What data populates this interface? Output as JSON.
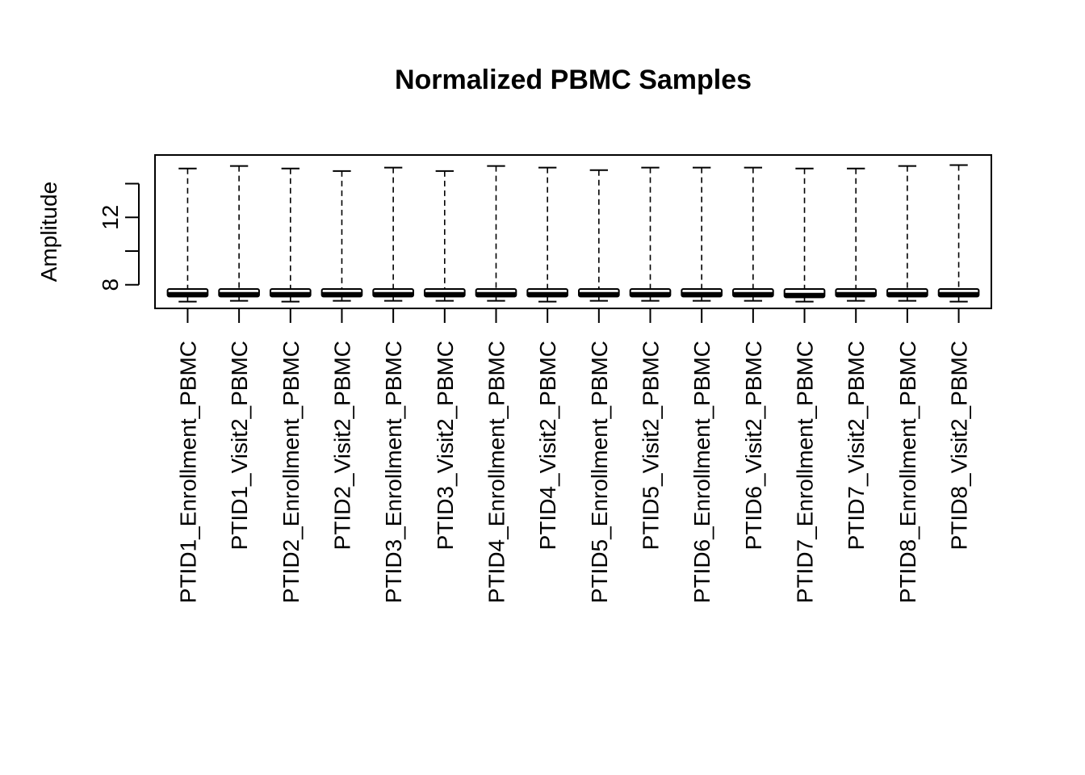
{
  "chart_data": {
    "type": "boxplot",
    "title": "Normalized PBMC Samples",
    "xlabel": "",
    "ylabel": "Amplitude",
    "yticks": [
      8,
      10,
      12,
      14
    ],
    "ytick_labels": [
      "8",
      "",
      "12",
      ""
    ],
    "ylim": [
      6.6,
      15.7
    ],
    "grid": false,
    "categories": [
      "PTID1_Enrollment_PBMC",
      "PTID1_Visit2_PBMC",
      "PTID2_Enrollment_PBMC",
      "PTID2_Visit2_PBMC",
      "PTID3_Enrollment_PBMC",
      "PTID3_Visit2_PBMC",
      "PTID4_Enrollment_PBMC",
      "PTID4_Visit2_PBMC",
      "PTID5_Enrollment_PBMC",
      "PTID5_Visit2_PBMC",
      "PTID6_Enrollment_PBMC",
      "PTID6_Visit2_PBMC",
      "PTID7_Enrollment_PBMC",
      "PTID7_Visit2_PBMC",
      "PTID8_Enrollment_PBMC",
      "PTID8_Visit2_PBMC"
    ],
    "boxes": [
      {
        "whisker_low": 7.0,
        "q1": 7.3,
        "median": 7.45,
        "q3": 7.75,
        "whisker_high": 14.9
      },
      {
        "whisker_low": 7.05,
        "q1": 7.3,
        "median": 7.45,
        "q3": 7.75,
        "whisker_high": 15.05
      },
      {
        "whisker_low": 7.0,
        "q1": 7.3,
        "median": 7.45,
        "q3": 7.75,
        "whisker_high": 14.9
      },
      {
        "whisker_low": 7.05,
        "q1": 7.3,
        "median": 7.45,
        "q3": 7.75,
        "whisker_high": 14.75
      },
      {
        "whisker_low": 7.05,
        "q1": 7.3,
        "median": 7.45,
        "q3": 7.75,
        "whisker_high": 14.95
      },
      {
        "whisker_low": 7.05,
        "q1": 7.3,
        "median": 7.45,
        "q3": 7.75,
        "whisker_high": 14.75
      },
      {
        "whisker_low": 7.05,
        "q1": 7.3,
        "median": 7.45,
        "q3": 7.75,
        "whisker_high": 15.05
      },
      {
        "whisker_low": 7.0,
        "q1": 7.3,
        "median": 7.45,
        "q3": 7.75,
        "whisker_high": 14.95
      },
      {
        "whisker_low": 7.05,
        "q1": 7.3,
        "median": 7.45,
        "q3": 7.75,
        "whisker_high": 14.8
      },
      {
        "whisker_low": 7.05,
        "q1": 7.3,
        "median": 7.45,
        "q3": 7.75,
        "whisker_high": 14.95
      },
      {
        "whisker_low": 7.05,
        "q1": 7.3,
        "median": 7.45,
        "q3": 7.75,
        "whisker_high": 14.95
      },
      {
        "whisker_low": 7.05,
        "q1": 7.3,
        "median": 7.45,
        "q3": 7.75,
        "whisker_high": 14.95
      },
      {
        "whisker_low": 7.0,
        "q1": 7.25,
        "median": 7.4,
        "q3": 7.75,
        "whisker_high": 14.9
      },
      {
        "whisker_low": 7.05,
        "q1": 7.3,
        "median": 7.45,
        "q3": 7.75,
        "whisker_high": 14.9
      },
      {
        "whisker_low": 7.05,
        "q1": 7.3,
        "median": 7.45,
        "q3": 7.75,
        "whisker_high": 15.05
      },
      {
        "whisker_low": 7.0,
        "q1": 7.3,
        "median": 7.45,
        "q3": 7.75,
        "whisker_high": 15.1
      }
    ],
    "colors": {
      "box_fill": "#ffffff",
      "stroke": "#000000"
    }
  }
}
